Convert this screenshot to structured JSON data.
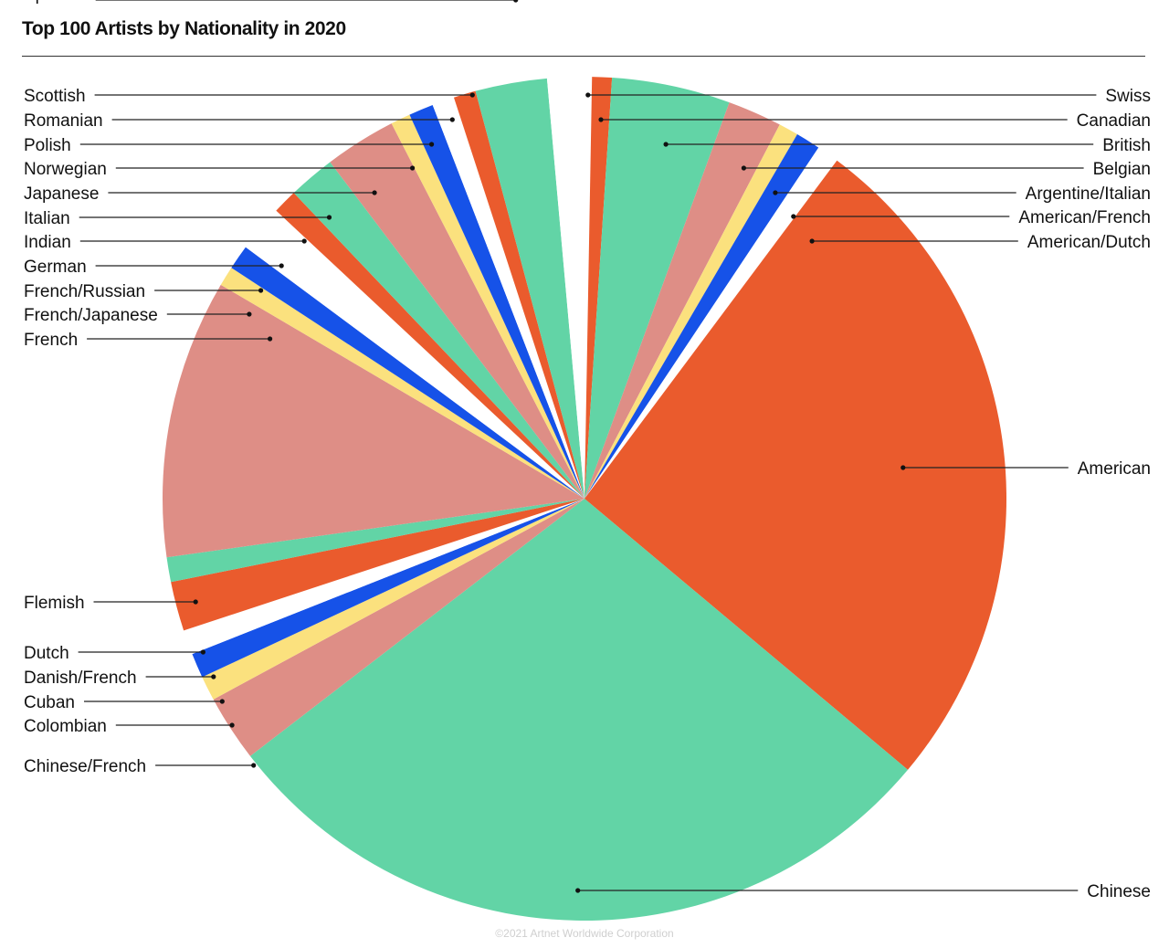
{
  "title": "Top 100 Artists by Nationality in 2020",
  "credit": "©2021 Artnet Worldwide Corporation",
  "colors": {
    "green": "#62D4A6",
    "orange": "#EA5B2D",
    "pink": "#DE8E86",
    "yellow": "#FBE17E",
    "blue": "#1652E8",
    "white": "#FFFFFF"
  },
  "chart_data": {
    "type": "pie",
    "title": "Top 100 Artists by Nationality in 2020",
    "start": "top, clockwise",
    "slices": [
      {
        "label": "Swiss",
        "value": 0.3,
        "color": "white"
      },
      {
        "label": "Canadian",
        "value": 0.8,
        "color": "orange"
      },
      {
        "label": "British",
        "value": 4.8,
        "color": "green"
      },
      {
        "label": "Belgian",
        "value": 2.2,
        "color": "pink"
      },
      {
        "label": "Argentine/Italian",
        "value": 0.8,
        "color": "yellow"
      },
      {
        "label": "American/French",
        "value": 1.0,
        "color": "blue"
      },
      {
        "label": "American/Dutch",
        "value": 0.9,
        "color": "white"
      },
      {
        "label": "American",
        "value": 27.4,
        "color": "orange"
      },
      {
        "label": "Chinese",
        "value": 30.1,
        "color": "green"
      },
      {
        "label": "Chinese/French",
        "value": 2.7,
        "color": "pink"
      },
      {
        "label": "Colombian",
        "value": 1.0,
        "color": "yellow"
      },
      {
        "label": "Cuban",
        "value": 1.0,
        "color": "blue"
      },
      {
        "label": "Danish/French",
        "value": 1.0,
        "color": "white"
      },
      {
        "label": "Dutch",
        "value": 2.0,
        "color": "orange"
      },
      {
        "label": "Flemish",
        "value": 1.0,
        "color": "green"
      },
      {
        "label": "French",
        "value": 11.3,
        "color": "pink"
      },
      {
        "label": "French/Japanese",
        "value": 0.8,
        "color": "yellow"
      },
      {
        "label": "French/Russian",
        "value": 1.0,
        "color": "blue"
      },
      {
        "label": "German",
        "value": 1.9,
        "color": "white"
      },
      {
        "label": "Indian",
        "value": 1.0,
        "color": "orange"
      },
      {
        "label": "Italian",
        "value": 1.9,
        "color": "green"
      },
      {
        "label": "Japanese",
        "value": 2.9,
        "color": "pink"
      },
      {
        "label": "Norwegian",
        "value": 0.8,
        "color": "yellow"
      },
      {
        "label": "Polish",
        "value": 1.0,
        "color": "blue"
      },
      {
        "label": "Romanian",
        "value": 0.9,
        "color": "white"
      },
      {
        "label": "Scottish",
        "value": 0.9,
        "color": "orange"
      },
      {
        "label": "Spanish",
        "value": 2.9,
        "color": "green"
      },
      {
        "label": "(unlabeled)",
        "value": 1.5,
        "color": "white"
      }
    ]
  }
}
